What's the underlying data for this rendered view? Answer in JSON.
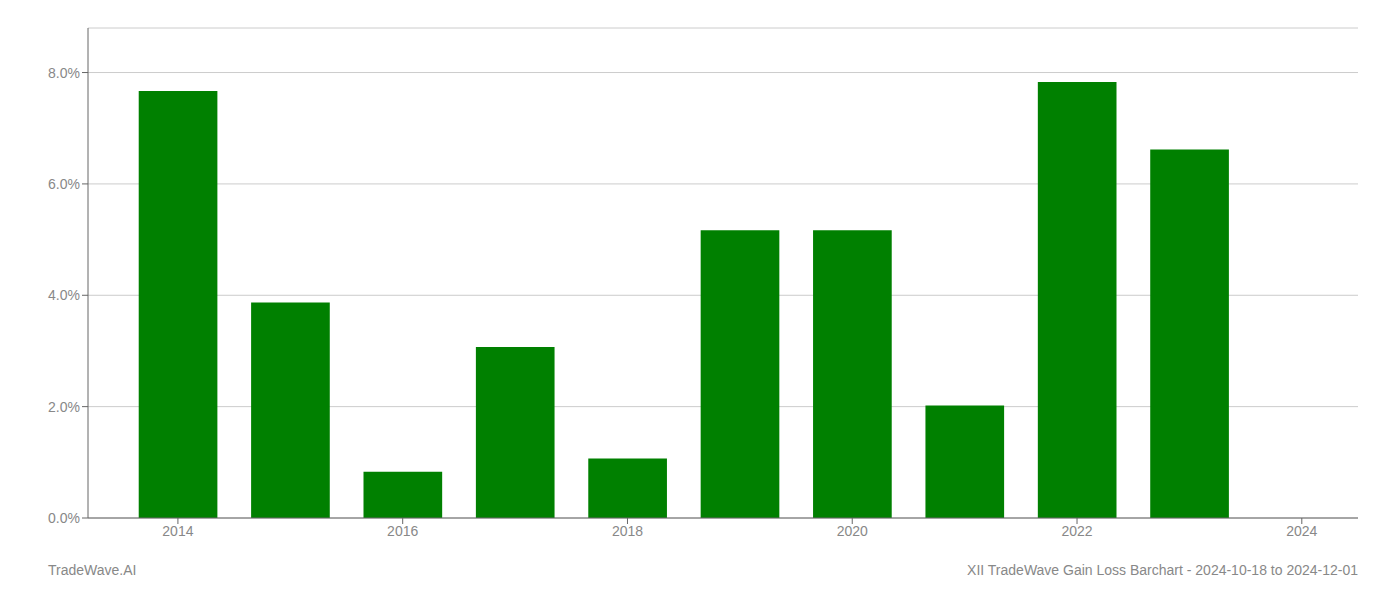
{
  "chart_data": {
    "type": "bar",
    "title": "XII TradeWave Gain Loss Barchart - 2024-10-18 to 2024-12-01",
    "annotations": [
      "TradeWave.AI"
    ],
    "x": [
      2014,
      2015,
      2016,
      2017,
      2018,
      2019,
      2020,
      2021,
      2022,
      2023
    ],
    "values": [
      0.0767,
      0.0387,
      0.0083,
      0.0307,
      0.0107,
      0.0517,
      0.0517,
      0.0202,
      0.0783,
      0.0662
    ],
    "color": "#008000",
    "xlim": [
      2013.2,
      2024.5
    ],
    "xticks": [
      2014,
      2016,
      2018,
      2020,
      2022,
      2024
    ],
    "ylim": [
      0,
      0.088
    ],
    "yticks": [
      {
        "value": 0.0,
        "label": "0.0%"
      },
      {
        "value": 0.02,
        "label": "2.0%"
      },
      {
        "value": 0.04,
        "label": "4.0%"
      },
      {
        "value": 0.06,
        "label": "6.0%"
      },
      {
        "value": 0.08,
        "label": "8.0%"
      }
    ],
    "grid": true
  }
}
